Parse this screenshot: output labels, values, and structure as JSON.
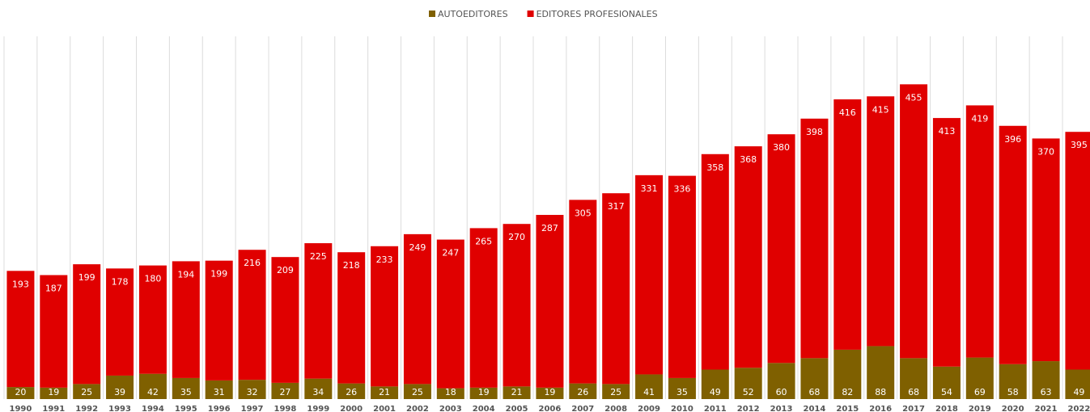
{
  "chart_data": {
    "type": "stacked-bar",
    "categories": [
      "1990",
      "1991",
      "1992",
      "1993",
      "1994",
      "1995",
      "1996",
      "1997",
      "1998",
      "1999",
      "2000",
      "2001",
      "2002",
      "2003",
      "2004",
      "2005",
      "2006",
      "2007",
      "2008",
      "2009",
      "2010",
      "2011",
      "2012",
      "2013",
      "2014",
      "2015",
      "2016",
      "2017",
      "2018",
      "2019",
      "2020",
      "2021",
      "2022"
    ],
    "series": [
      {
        "name": "AUTOEDITORES",
        "color": "#7f6000",
        "values": [
          20,
          19,
          25,
          39,
          42,
          35,
          31,
          32,
          27,
          34,
          26,
          21,
          25,
          18,
          19,
          21,
          19,
          26,
          25,
          41,
          35,
          49,
          52,
          60,
          68,
          82,
          88,
          68,
          54,
          69,
          58,
          63,
          49
        ]
      },
      {
        "name": "EDITORES PROFESIONALES",
        "color": "#e00000",
        "values": [
          193,
          187,
          199,
          178,
          180,
          194,
          199,
          216,
          209,
          225,
          218,
          233,
          249,
          247,
          265,
          270,
          287,
          305,
          317,
          331,
          336,
          358,
          368,
          380,
          398,
          416,
          415,
          455,
          413,
          419,
          396,
          370,
          395
        ]
      }
    ],
    "legend": "top",
    "grid": true
  }
}
